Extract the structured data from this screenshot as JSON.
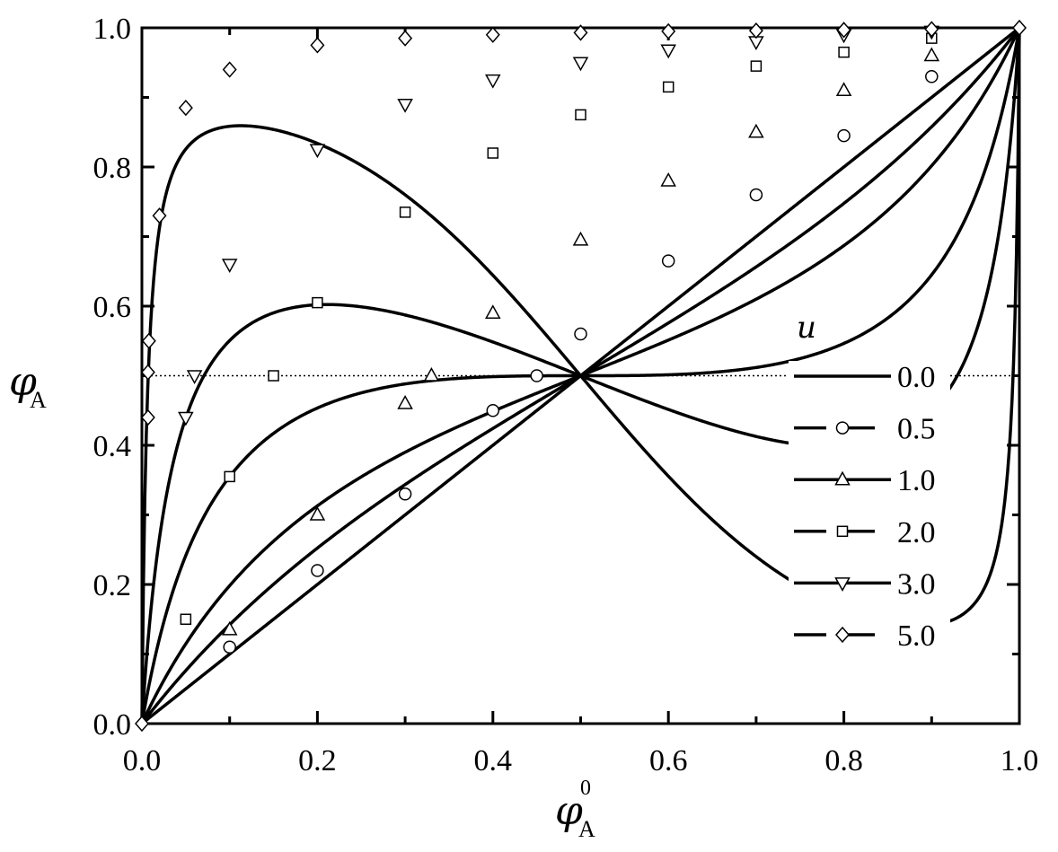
{
  "chart_data": {
    "type": "line",
    "xlabel": {
      "symbol": "φ",
      "subscript": "A",
      "superscript": "0"
    },
    "ylabel": {
      "symbol": "φ",
      "subscript": "A"
    },
    "xlim": [
      0.0,
      1.0
    ],
    "ylim": [
      0.0,
      1.0
    ],
    "xticks": [
      "0.0",
      "0.2",
      "0.4",
      "0.6",
      "0.8",
      "1.0"
    ],
    "yticks": [
      "0.0",
      "0.2",
      "0.4",
      "0.6",
      "0.8",
      "1.0"
    ],
    "grid": false,
    "legend": {
      "title": "u",
      "position": "right-middle"
    },
    "reference_line": {
      "y": 0.5,
      "style": "dotted"
    },
    "series": [
      {
        "name": "0.0",
        "u": 0.0,
        "marker": "none",
        "points": []
      },
      {
        "name": "0.5",
        "u": 0.5,
        "marker": "circle",
        "points": [
          [
            0.1,
            0.11
          ],
          [
            0.2,
            0.22
          ],
          [
            0.3,
            0.33
          ],
          [
            0.4,
            0.45
          ],
          [
            0.45,
            0.5
          ],
          [
            0.5,
            0.56
          ],
          [
            0.6,
            0.665
          ],
          [
            0.7,
            0.76
          ],
          [
            0.8,
            0.845
          ],
          [
            0.9,
            0.93
          ]
        ]
      },
      {
        "name": "1.0",
        "u": 1.0,
        "marker": "triangle-up",
        "points": [
          [
            0.1,
            0.135
          ],
          [
            0.2,
            0.3
          ],
          [
            0.3,
            0.46
          ],
          [
            0.33,
            0.5
          ],
          [
            0.4,
            0.59
          ],
          [
            0.5,
            0.695
          ],
          [
            0.6,
            0.78
          ],
          [
            0.7,
            0.85
          ],
          [
            0.8,
            0.91
          ],
          [
            0.9,
            0.96
          ]
        ]
      },
      {
        "name": "2.0",
        "u": 2.0,
        "marker": "square",
        "points": [
          [
            0.05,
            0.15
          ],
          [
            0.1,
            0.355
          ],
          [
            0.15,
            0.5
          ],
          [
            0.2,
            0.605
          ],
          [
            0.3,
            0.735
          ],
          [
            0.4,
            0.82
          ],
          [
            0.5,
            0.875
          ],
          [
            0.6,
            0.915
          ],
          [
            0.7,
            0.945
          ],
          [
            0.8,
            0.965
          ],
          [
            0.9,
            0.985
          ]
        ]
      },
      {
        "name": "3.0",
        "u": 3.0,
        "marker": "triangle-down",
        "points": [
          [
            0.05,
            0.44
          ],
          [
            0.06,
            0.5
          ],
          [
            0.1,
            0.66
          ],
          [
            0.2,
            0.825
          ],
          [
            0.3,
            0.89
          ],
          [
            0.4,
            0.925
          ],
          [
            0.5,
            0.95
          ],
          [
            0.6,
            0.968
          ],
          [
            0.7,
            0.98
          ],
          [
            0.8,
            0.99
          ],
          [
            0.9,
            0.995
          ]
        ]
      },
      {
        "name": "5.0",
        "u": 5.0,
        "marker": "diamond",
        "points": [
          [
            0.007,
            0.44
          ],
          [
            0.007,
            0.505
          ],
          [
            0.008,
            0.55
          ],
          [
            0.02,
            0.73
          ],
          [
            0.05,
            0.885
          ],
          [
            0.1,
            0.94
          ],
          [
            0.2,
            0.975
          ],
          [
            0.3,
            0.985
          ],
          [
            0.4,
            0.99
          ],
          [
            0.5,
            0.993
          ],
          [
            0.6,
            0.995
          ],
          [
            0.7,
            0.996
          ],
          [
            0.8,
            0.997
          ],
          [
            0.9,
            0.998
          ]
        ]
      }
    ]
  }
}
